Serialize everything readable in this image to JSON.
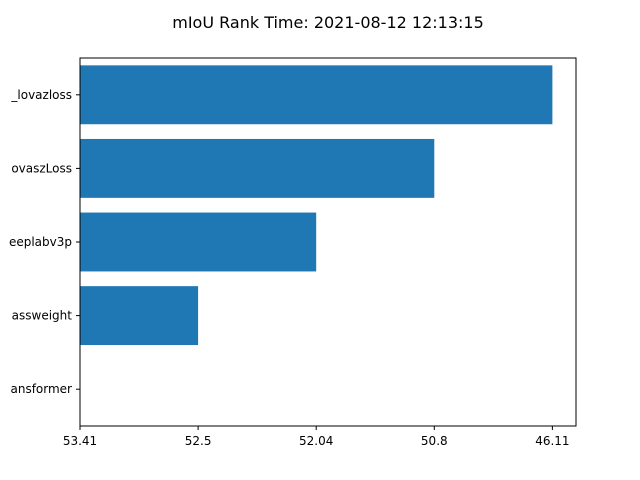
{
  "chart_data": {
    "type": "bar",
    "orientation": "horizontal",
    "title": "mIoU Rank Time: 2021-08-12 12:13:15",
    "xlabel": "",
    "ylabel": "",
    "categories": [
      "_lovazloss",
      "ovaszLoss",
      "eeplabv3p",
      "assweight",
      "ansformer"
    ],
    "values": [
      4,
      3,
      2,
      1,
      0
    ],
    "x_tick_labels": [
      "53.41",
      "52.5",
      "52.04",
      "50.8",
      "46.11"
    ],
    "x_tick_values": [
      0,
      1,
      2,
      3,
      4
    ],
    "xlim": [
      0,
      4.2
    ],
    "bar_color": "#1f77b4",
    "grid": false,
    "legend": "none"
  }
}
